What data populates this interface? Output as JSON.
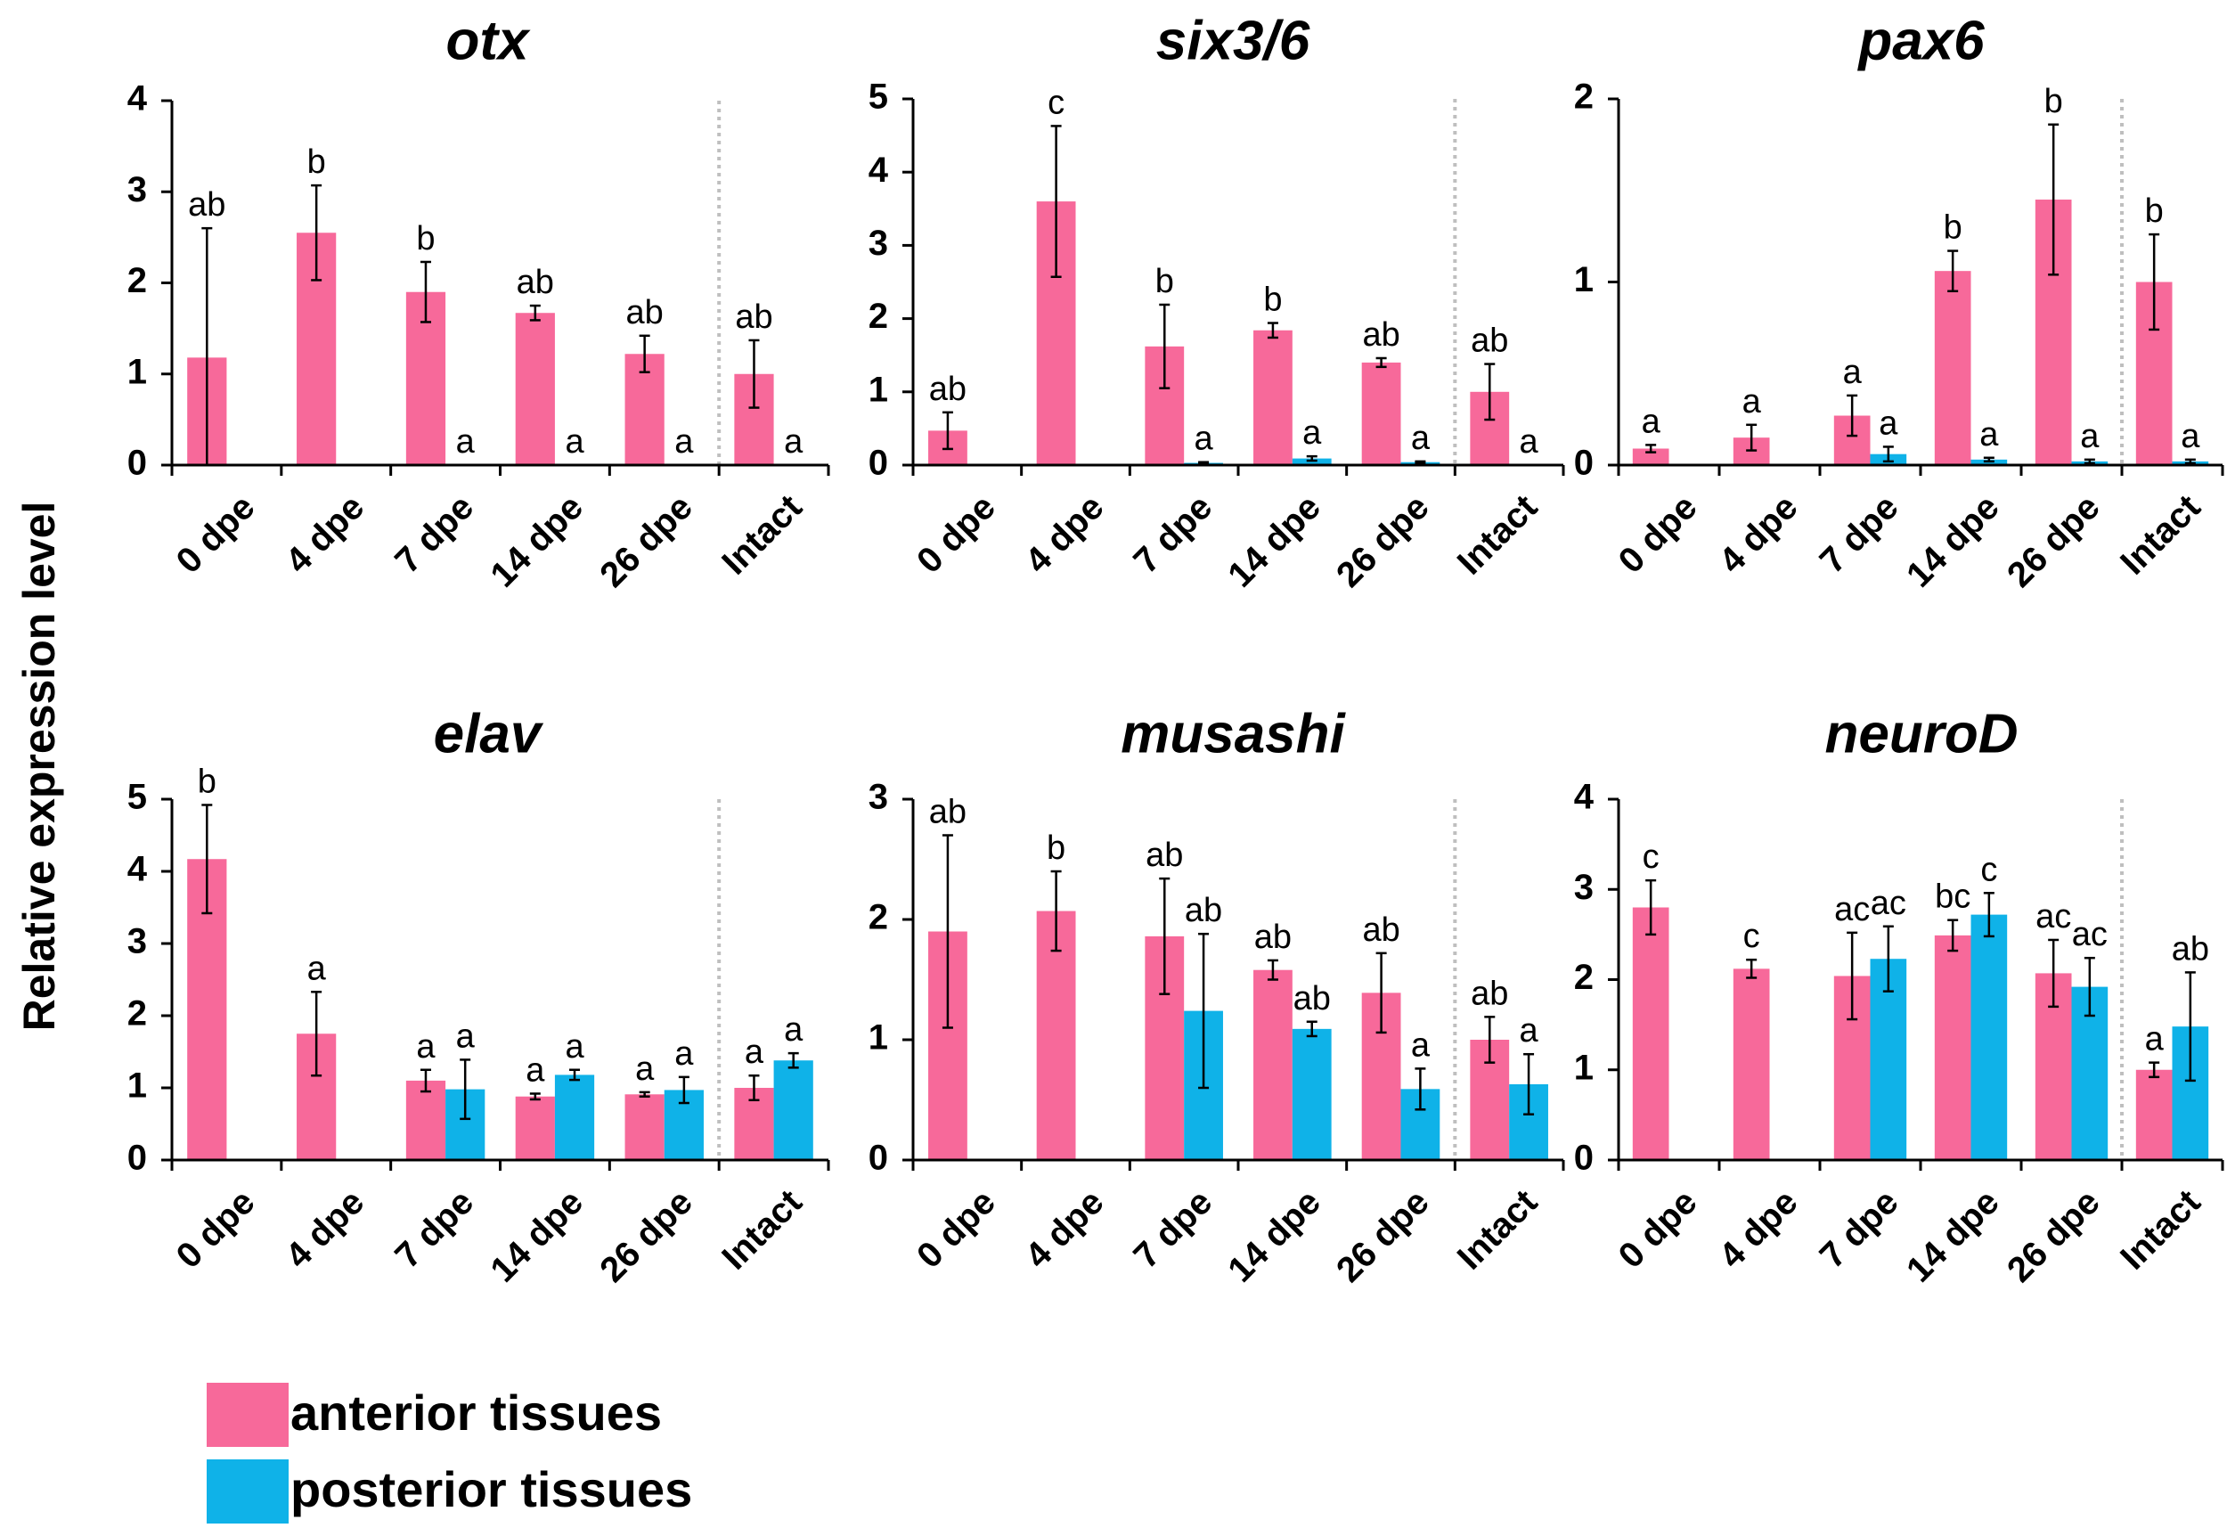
{
  "figure": {
    "ylabel": "Relative expression level"
  },
  "colors": {
    "anterior": "#f7699a",
    "posterior": "#0fb2e8",
    "axis": "#000000",
    "divider": "#bfbfbf"
  },
  "legend": {
    "items": [
      {
        "label": "anterior tissues",
        "series": "anterior"
      },
      {
        "label": "posterior tissues",
        "series": "posterior"
      }
    ]
  },
  "chart_data": [
    {
      "type": "bar",
      "title": "otx",
      "ylabel": "Relative expression level",
      "ylim": [
        0,
        4
      ],
      "yticks": [
        0,
        1,
        2,
        3,
        4
      ],
      "categories": [
        "0 dpe",
        "4 dpe",
        "7 dpe",
        "14 dpe",
        "26 dpe",
        "Intact"
      ],
      "series": [
        {
          "name": "anterior tissues",
          "key": "anterior",
          "values": [
            1.18,
            2.55,
            1.9,
            1.67,
            1.22,
            1.0
          ],
          "errors": [
            1.42,
            0.52,
            0.33,
            0.08,
            0.2,
            0.37
          ],
          "labels": [
            "ab",
            "b",
            "b",
            "ab",
            "ab",
            "ab"
          ]
        },
        {
          "name": "posterior tissues",
          "key": "posterior",
          "values": [
            null,
            null,
            0.0,
            0.0,
            0.0,
            0.0
          ],
          "errors": [
            null,
            null,
            0.0,
            0.0,
            0.0,
            0.0
          ],
          "labels": [
            null,
            null,
            "a",
            "a",
            "a",
            "a"
          ]
        }
      ]
    },
    {
      "type": "bar",
      "title": "six3/6",
      "ylim": [
        0,
        5
      ],
      "yticks": [
        0,
        1,
        2,
        3,
        4,
        5
      ],
      "categories": [
        "0 dpe",
        "4 dpe",
        "7 dpe",
        "14 dpe",
        "26 dpe",
        "Intact"
      ],
      "series": [
        {
          "name": "anterior tissues",
          "key": "anterior",
          "values": [
            0.47,
            3.6,
            1.62,
            1.84,
            1.4,
            1.0
          ],
          "errors": [
            0.25,
            1.03,
            0.57,
            0.1,
            0.06,
            0.38
          ],
          "labels": [
            "ab",
            "c",
            "b",
            "b",
            "ab",
            "ab"
          ]
        },
        {
          "name": "posterior tissues",
          "key": "posterior",
          "values": [
            null,
            null,
            0.03,
            0.09,
            0.04,
            0.0
          ],
          "errors": [
            null,
            null,
            0.01,
            0.03,
            0.01,
            0.0
          ],
          "labels": [
            null,
            null,
            "a",
            "a",
            "a",
            "a"
          ]
        }
      ]
    },
    {
      "type": "bar",
      "title": "pax6",
      "ylim": [
        0,
        2
      ],
      "yticks": [
        0,
        1,
        2
      ],
      "categories": [
        "0 dpe",
        "4 dpe",
        "7 dpe",
        "14 dpe",
        "26 dpe",
        "Intact"
      ],
      "series": [
        {
          "name": "anterior tissues",
          "key": "anterior",
          "values": [
            0.09,
            0.15,
            0.27,
            1.06,
            1.45,
            1.0
          ],
          "errors": [
            0.02,
            0.07,
            0.11,
            0.11,
            0.41,
            0.26
          ],
          "labels": [
            "a",
            "a",
            "a",
            "b",
            "b",
            "b"
          ]
        },
        {
          "name": "posterior tissues",
          "key": "posterior",
          "values": [
            null,
            null,
            0.06,
            0.03,
            0.02,
            0.02
          ],
          "errors": [
            null,
            null,
            0.04,
            0.01,
            0.01,
            0.01
          ],
          "labels": [
            null,
            null,
            "a",
            "a",
            "a",
            "a"
          ]
        }
      ]
    },
    {
      "type": "bar",
      "title": "elav",
      "ylim": [
        0,
        5
      ],
      "yticks": [
        0,
        1,
        2,
        3,
        4,
        5
      ],
      "categories": [
        "0 dpe",
        "4 dpe",
        "7 dpe",
        "14 dpe",
        "26 dpe",
        "Intact"
      ],
      "series": [
        {
          "name": "anterior tissues",
          "key": "anterior",
          "values": [
            4.17,
            1.75,
            1.1,
            0.88,
            0.91,
            1.0
          ],
          "errors": [
            0.75,
            0.58,
            0.15,
            0.04,
            0.03,
            0.17
          ],
          "labels": [
            "b",
            "a",
            "a",
            "a",
            "a",
            "a"
          ]
        },
        {
          "name": "posterior tissues",
          "key": "posterior",
          "values": [
            null,
            null,
            0.98,
            1.18,
            0.97,
            1.38
          ],
          "errors": [
            null,
            null,
            0.41,
            0.07,
            0.18,
            0.1
          ],
          "labels": [
            null,
            null,
            "a",
            "a",
            "a",
            "a"
          ]
        }
      ]
    },
    {
      "type": "bar",
      "title": "musashi",
      "ylim": [
        0,
        3
      ],
      "yticks": [
        0,
        1,
        2,
        3
      ],
      "categories": [
        "0 dpe",
        "4 dpe",
        "7 dpe",
        "14 dpe",
        "26 dpe",
        "Intact"
      ],
      "series": [
        {
          "name": "anterior tissues",
          "key": "anterior",
          "values": [
            1.9,
            2.07,
            1.86,
            1.58,
            1.39,
            1.0
          ],
          "errors": [
            0.8,
            0.33,
            0.48,
            0.08,
            0.33,
            0.19
          ],
          "labels": [
            "ab",
            "b",
            "ab",
            "ab",
            "ab",
            "ab"
          ]
        },
        {
          "name": "posterior tissues",
          "key": "posterior",
          "values": [
            null,
            null,
            1.24,
            1.09,
            0.59,
            0.63
          ],
          "errors": [
            null,
            null,
            0.64,
            0.06,
            0.17,
            0.25
          ],
          "labels": [
            null,
            null,
            "ab",
            "ab",
            "a",
            "a"
          ]
        }
      ]
    },
    {
      "type": "bar",
      "title": "neuroD",
      "ylim": [
        0,
        4
      ],
      "yticks": [
        0,
        1,
        2,
        3,
        4
      ],
      "categories": [
        "0 dpe",
        "4 dpe",
        "7 dpe",
        "14 dpe",
        "26 dpe",
        "Intact"
      ],
      "series": [
        {
          "name": "anterior tissues",
          "key": "anterior",
          "values": [
            2.8,
            2.12,
            2.04,
            2.49,
            2.07,
            1.0
          ],
          "errors": [
            0.3,
            0.1,
            0.48,
            0.17,
            0.37,
            0.08
          ],
          "labels": [
            "c",
            "c",
            "ac",
            "bc",
            "ac",
            "a"
          ]
        },
        {
          "name": "posterior tissues",
          "key": "posterior",
          "values": [
            null,
            null,
            2.23,
            2.72,
            1.92,
            1.48
          ],
          "errors": [
            null,
            null,
            0.36,
            0.24,
            0.32,
            0.6
          ],
          "labels": [
            null,
            null,
            "ac",
            "c",
            "ac",
            "ab"
          ]
        }
      ]
    }
  ]
}
